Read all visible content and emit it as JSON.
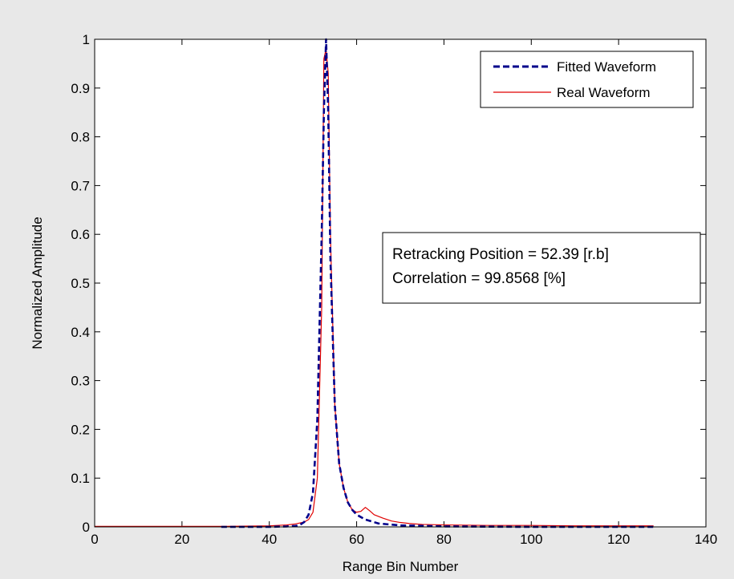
{
  "figure": {
    "background": "#e8e8e8",
    "axes_background": "#ffffff"
  },
  "chart_data": {
    "type": "line",
    "title": "",
    "xlabel": "Range Bin Number",
    "ylabel": "Normalized Amplitude",
    "xlim": [
      0,
      140
    ],
    "ylim": [
      0,
      1
    ],
    "xticks": [
      0,
      20,
      40,
      60,
      80,
      100,
      120,
      140
    ],
    "yticks": [
      0,
      0.1,
      0.2,
      0.3,
      0.4,
      0.5,
      0.6,
      0.7,
      0.8,
      0.9,
      1
    ],
    "xtick_labels": [
      "0",
      "20",
      "40",
      "60",
      "80",
      "100",
      "120",
      "140"
    ],
    "ytick_labels": [
      "0",
      "0.1",
      "0.2",
      "0.3",
      "0.4",
      "0.5",
      "0.6",
      "0.7",
      "0.8",
      "0.9",
      "1"
    ],
    "grid": false,
    "legend_position": "top-right",
    "series": [
      {
        "name": "Fitted Waveform",
        "color": "#00008b",
        "style": "dashed",
        "x": [
          29,
          40,
          44,
          46,
          47,
          48,
          49,
          50,
          51,
          52,
          52.5,
          53,
          53.5,
          54,
          55,
          56,
          57,
          58,
          59,
          60,
          62,
          65,
          70,
          80,
          100,
          128
        ],
        "y": [
          0.0,
          0.0,
          0.001,
          0.002,
          0.004,
          0.01,
          0.025,
          0.07,
          0.22,
          0.6,
          0.85,
          1.0,
          0.85,
          0.55,
          0.25,
          0.13,
          0.08,
          0.05,
          0.035,
          0.025,
          0.015,
          0.007,
          0.003,
          0.001,
          0.0,
          0.0
        ]
      },
      {
        "name": "Real Waveform",
        "color": "#e00000",
        "style": "solid",
        "x": [
          0,
          10,
          20,
          30,
          40,
          44,
          46,
          48,
          49,
          50,
          51,
          52,
          52.5,
          53,
          53.5,
          54,
          55,
          56,
          57,
          58,
          59,
          60,
          61,
          62,
          63,
          64,
          66,
          68,
          70,
          72,
          75,
          80,
          90,
          100,
          110,
          120,
          128
        ],
        "y": [
          0.001,
          0.001,
          0.001,
          0.001,
          0.002,
          0.004,
          0.006,
          0.01,
          0.015,
          0.03,
          0.1,
          0.45,
          0.96,
          0.98,
          0.93,
          0.6,
          0.25,
          0.13,
          0.08,
          0.05,
          0.035,
          0.03,
          0.032,
          0.04,
          0.033,
          0.025,
          0.018,
          0.012,
          0.009,
          0.007,
          0.005,
          0.004,
          0.003,
          0.003,
          0.002,
          0.002,
          0.002
        ]
      }
    ],
    "annotation": {
      "lines": [
        "Retracking Position = 52.39 [r.b]",
        "Correlation = 99.8568 [%]"
      ]
    }
  }
}
